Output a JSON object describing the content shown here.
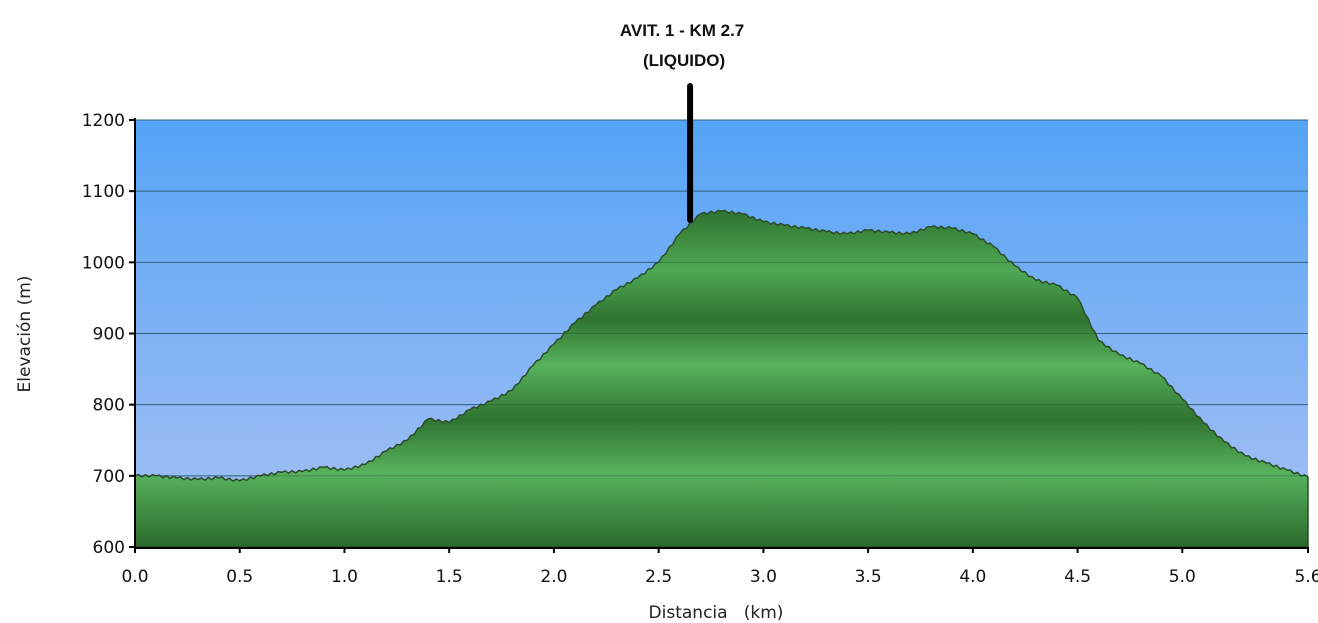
{
  "chart_data": {
    "type": "area",
    "xlabel": "Distancia   (km)",
    "ylabel": "Elevación (m)",
    "xlim": [
      0.0,
      5.6
    ],
    "ylim": [
      600,
      1200
    ],
    "x_ticks": [
      "0.0",
      "0.5",
      "1.0",
      "1.5",
      "2.0",
      "2.5",
      "3.0",
      "3.5",
      "4.0",
      "4.5",
      "5.0",
      "5.6"
    ],
    "y_ticks": [
      "600",
      "700",
      "800",
      "900",
      "1000",
      "1100",
      "1200"
    ],
    "grid": true,
    "colors": {
      "sky_top": "#54a3f5",
      "sky_bottom": "#a9c1f4",
      "terrain_light": "#58b25c",
      "terrain_dark": "#2f7330",
      "terrain_outline": "#2b4e2b",
      "marker": "#000000"
    },
    "x": [
      0.0,
      0.1,
      0.2,
      0.3,
      0.4,
      0.5,
      0.6,
      0.7,
      0.8,
      0.9,
      1.0,
      1.1,
      1.2,
      1.3,
      1.4,
      1.5,
      1.6,
      1.7,
      1.8,
      1.9,
      2.0,
      2.1,
      2.2,
      2.3,
      2.4,
      2.5,
      2.6,
      2.7,
      2.8,
      2.9,
      3.0,
      3.1,
      3.2,
      3.3,
      3.4,
      3.5,
      3.6,
      3.7,
      3.8,
      3.9,
      4.0,
      4.1,
      4.2,
      4.3,
      4.4,
      4.5,
      4.6,
      4.7,
      4.8,
      4.9,
      5.0,
      5.1,
      5.2,
      5.3,
      5.4,
      5.5,
      5.6
    ],
    "y": [
      700,
      700,
      697,
      695,
      697,
      693,
      700,
      705,
      706,
      712,
      708,
      716,
      735,
      750,
      780,
      775,
      793,
      805,
      820,
      855,
      885,
      915,
      940,
      962,
      978,
      1000,
      1040,
      1068,
      1072,
      1068,
      1057,
      1052,
      1048,
      1043,
      1040,
      1045,
      1042,
      1040,
      1050,
      1048,
      1040,
      1022,
      995,
      975,
      968,
      950,
      890,
      870,
      858,
      840,
      808,
      775,
      748,
      728,
      718,
      708,
      698
    ],
    "annotations": [
      {
        "x": 2.65,
        "line1": "AVIT. 1 - KM 2.7",
        "line2": "(LIQUIDO)"
      }
    ]
  }
}
